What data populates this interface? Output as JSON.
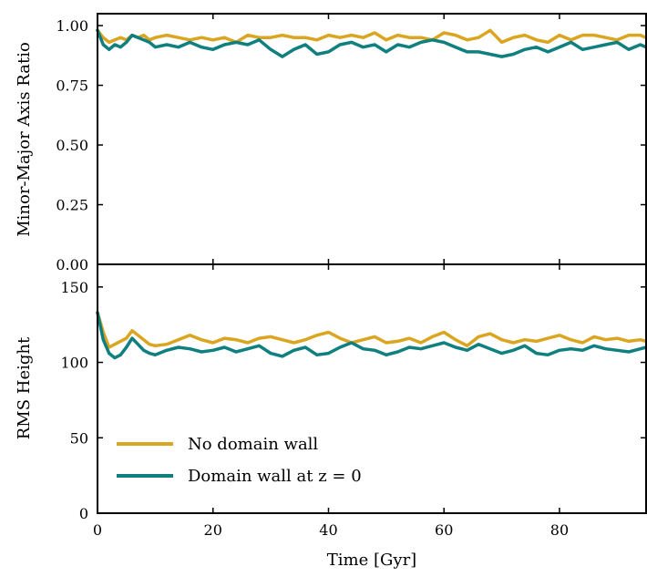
{
  "chart_data": [
    {
      "type": "line",
      "ylabel": "Minor-Major Axis Ratio",
      "xlim": [
        0,
        95
      ],
      "ylim": [
        0,
        1.05
      ],
      "yticks": [
        0.0,
        0.25,
        0.5,
        0.75,
        1.0
      ],
      "ytick_labels": [
        "0.00",
        "0.25",
        "0.50",
        "0.75",
        "1.00"
      ],
      "series": [
        {
          "name": "No domain wall",
          "color": "#DAA520",
          "x": [
            0,
            1,
            2,
            3,
            4,
            5,
            6,
            7,
            8,
            9,
            10,
            12,
            14,
            16,
            18,
            20,
            22,
            24,
            26,
            28,
            30,
            32,
            34,
            36,
            38,
            40,
            42,
            44,
            46,
            48,
            50,
            52,
            54,
            56,
            58,
            60,
            62,
            64,
            66,
            68,
            70,
            72,
            74,
            76,
            78,
            80,
            82,
            84,
            86,
            88,
            90,
            92,
            94,
            95
          ],
          "y": [
            0.98,
            0.95,
            0.93,
            0.94,
            0.95,
            0.94,
            0.96,
            0.95,
            0.96,
            0.94,
            0.95,
            0.96,
            0.95,
            0.94,
            0.95,
            0.94,
            0.95,
            0.93,
            0.96,
            0.95,
            0.95,
            0.96,
            0.95,
            0.95,
            0.94,
            0.96,
            0.95,
            0.96,
            0.95,
            0.97,
            0.94,
            0.96,
            0.95,
            0.95,
            0.94,
            0.97,
            0.96,
            0.94,
            0.95,
            0.98,
            0.93,
            0.95,
            0.96,
            0.94,
            0.93,
            0.96,
            0.94,
            0.96,
            0.96,
            0.95,
            0.94,
            0.96,
            0.96,
            0.95
          ]
        },
        {
          "name": "Domain wall at z = 0",
          "color": "#0F7F7F",
          "x": [
            0,
            1,
            2,
            3,
            4,
            5,
            6,
            7,
            8,
            9,
            10,
            12,
            14,
            16,
            18,
            20,
            22,
            24,
            26,
            28,
            30,
            32,
            34,
            36,
            38,
            40,
            42,
            44,
            46,
            48,
            50,
            52,
            54,
            56,
            58,
            60,
            62,
            64,
            66,
            68,
            70,
            72,
            74,
            76,
            78,
            80,
            82,
            84,
            86,
            88,
            90,
            92,
            94,
            95
          ],
          "y": [
            0.98,
            0.92,
            0.9,
            0.92,
            0.91,
            0.93,
            0.96,
            0.95,
            0.94,
            0.93,
            0.91,
            0.92,
            0.91,
            0.93,
            0.91,
            0.9,
            0.92,
            0.93,
            0.92,
            0.94,
            0.9,
            0.87,
            0.9,
            0.92,
            0.88,
            0.89,
            0.92,
            0.93,
            0.91,
            0.92,
            0.89,
            0.92,
            0.91,
            0.93,
            0.94,
            0.93,
            0.91,
            0.89,
            0.89,
            0.88,
            0.87,
            0.88,
            0.9,
            0.91,
            0.89,
            0.91,
            0.93,
            0.9,
            0.91,
            0.92,
            0.93,
            0.9,
            0.92,
            0.91
          ]
        }
      ]
    },
    {
      "type": "line",
      "xlabel": "Time [Gyr]",
      "ylabel": "RMS Height",
      "xlim": [
        0,
        95
      ],
      "ylim": [
        0,
        165
      ],
      "xticks": [
        0,
        20,
        40,
        60,
        80
      ],
      "xtick_labels": [
        "0",
        "20",
        "40",
        "60",
        "80"
      ],
      "yticks": [
        0,
        50,
        100,
        150
      ],
      "ytick_labels": [
        "0",
        "50",
        "100",
        "150"
      ],
      "legend": {
        "position": "lower-left",
        "labels": [
          "No domain wall",
          "Domain wall at z = 0"
        ]
      },
      "series": [
        {
          "name": "No domain wall",
          "color": "#DAA520",
          "x": [
            0,
            1,
            2,
            3,
            4,
            5,
            6,
            7,
            8,
            9,
            10,
            12,
            14,
            16,
            18,
            20,
            22,
            24,
            26,
            28,
            30,
            32,
            34,
            36,
            38,
            40,
            42,
            44,
            46,
            48,
            50,
            52,
            54,
            56,
            58,
            60,
            62,
            64,
            66,
            68,
            70,
            72,
            74,
            76,
            78,
            80,
            82,
            84,
            86,
            88,
            90,
            92,
            94,
            95
          ],
          "y": [
            133,
            120,
            110,
            112,
            114,
            116,
            121,
            118,
            115,
            112,
            111,
            112,
            115,
            118,
            115,
            113,
            116,
            115,
            113,
            116,
            117,
            115,
            113,
            115,
            118,
            120,
            116,
            113,
            115,
            117,
            113,
            114,
            116,
            113,
            117,
            120,
            115,
            111,
            117,
            119,
            115,
            113,
            115,
            114,
            116,
            118,
            115,
            113,
            117,
            115,
            116,
            114,
            115,
            114
          ]
        },
        {
          "name": "Domain wall at z = 0",
          "color": "#0F7F7F",
          "x": [
            0,
            1,
            2,
            3,
            4,
            5,
            6,
            7,
            8,
            9,
            10,
            12,
            14,
            16,
            18,
            20,
            22,
            24,
            26,
            28,
            30,
            32,
            34,
            36,
            38,
            40,
            42,
            44,
            46,
            48,
            50,
            52,
            54,
            56,
            58,
            60,
            62,
            64,
            66,
            68,
            70,
            72,
            74,
            76,
            78,
            80,
            82,
            84,
            86,
            88,
            90,
            92,
            94,
            95
          ],
          "y": [
            133,
            115,
            106,
            103,
            105,
            110,
            116,
            112,
            108,
            106,
            105,
            108,
            110,
            109,
            107,
            108,
            110,
            107,
            109,
            111,
            106,
            104,
            108,
            110,
            105,
            106,
            110,
            113,
            109,
            108,
            105,
            107,
            110,
            109,
            111,
            113,
            110,
            108,
            112,
            109,
            106,
            108,
            111,
            106,
            105,
            108,
            109,
            108,
            111,
            109,
            108,
            107,
            109,
            110
          ]
        }
      ]
    }
  ]
}
